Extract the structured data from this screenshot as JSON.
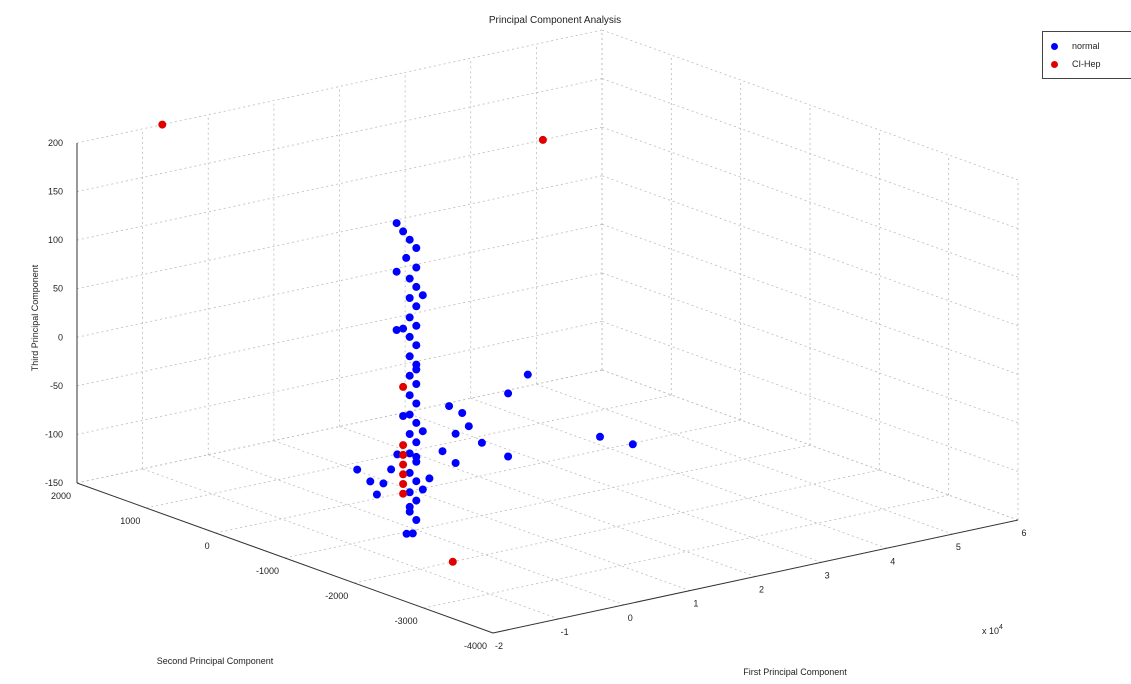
{
  "chart_data": {
    "type": "scatter",
    "title": "Principal Component Analysis",
    "xlabel": "First Principal Component",
    "ylabel": "Second Principal Component",
    "zlabel": "Third Principal Component",
    "x_multiplier_label": "x 10",
    "x_multiplier_exponent": "4",
    "xlim": [
      -2,
      6
    ],
    "ylim": [
      -4000,
      2000
    ],
    "zlim": [
      -150,
      200
    ],
    "xticks": [
      "-2",
      "-1",
      "0",
      "1",
      "2",
      "3",
      "4",
      "5",
      "6"
    ],
    "yticks": [
      "-4000",
      "-3000",
      "-2000",
      "-1000",
      "0",
      "1000",
      "2000"
    ],
    "zticks": [
      "-150",
      "-100",
      "-50",
      "0",
      "50",
      "100",
      "150",
      "200"
    ],
    "grid": true,
    "legend_position": "top-right",
    "series": [
      {
        "name": "normal",
        "color": "#0000ff",
        "points": [
          [
            -0.3,
            -1000,
            170
          ],
          [
            -0.2,
            -1000,
            160
          ],
          [
            -0.1,
            -1000,
            150
          ],
          [
            0.0,
            -1000,
            140
          ],
          [
            -0.1,
            -950,
            130
          ],
          [
            0.0,
            -1000,
            120
          ],
          [
            -0.1,
            -1000,
            110
          ],
          [
            0.0,
            -1000,
            100
          ],
          [
            -0.1,
            -1000,
            90
          ],
          [
            0.0,
            -1000,
            80
          ],
          [
            -0.1,
            -1000,
            70
          ],
          [
            0.0,
            -1000,
            60
          ],
          [
            -0.1,
            -1000,
            50
          ],
          [
            0.0,
            -1000,
            40
          ],
          [
            -0.1,
            -1000,
            30
          ],
          [
            0.0,
            -1000,
            20
          ],
          [
            -0.1,
            -1000,
            10
          ],
          [
            0.0,
            -1000,
            0
          ],
          [
            -0.1,
            -1000,
            -10
          ],
          [
            0.0,
            -1000,
            -20
          ],
          [
            -0.1,
            -1000,
            -30
          ],
          [
            0.0,
            -1000,
            -40
          ],
          [
            -0.1,
            -1000,
            -50
          ],
          [
            0.0,
            -1000,
            -60
          ],
          [
            -0.1,
            -1000,
            -70
          ],
          [
            0.0,
            -1000,
            -80
          ],
          [
            -0.1,
            -1000,
            -90
          ],
          [
            0.0,
            -1000,
            -100
          ],
          [
            -0.1,
            -1000,
            -110
          ],
          [
            0.0,
            -1000,
            -120
          ],
          [
            -0.1,
            -1000,
            -130
          ],
          [
            0.0,
            -1000,
            -140
          ],
          [
            -0.2,
            -1050,
            -150
          ],
          [
            0.0,
            -950,
            -155
          ],
          [
            -0.1,
            -1000,
            -125
          ],
          [
            -0.2,
            -1000,
            60
          ],
          [
            -0.3,
            -1000,
            120
          ],
          [
            -0.3,
            -1000,
            60
          ],
          [
            -0.2,
            -1000,
            -30
          ],
          [
            0.1,
            -1000,
            -110
          ],
          [
            0.2,
            -1000,
            -100
          ],
          [
            0.1,
            -1000,
            -50
          ],
          [
            0.0,
            -1000,
            15
          ],
          [
            0.1,
            -1000,
            90
          ],
          [
            0.5,
            -1000,
            -30
          ],
          [
            0.7,
            -1000,
            -40
          ],
          [
            0.6,
            -1000,
            -60
          ],
          [
            0.8,
            -1000,
            -55
          ],
          [
            0.4,
            -1000,
            -75
          ],
          [
            0.6,
            -1000,
            -90
          ],
          [
            1.0,
            -1000,
            -75
          ],
          [
            1.4,
            -1000,
            -30
          ],
          [
            1.7,
            -1000,
            -15
          ],
          [
            1.4,
            -1000,
            -95
          ],
          [
            2.8,
            -1000,
            -95
          ],
          [
            3.3,
            -1000,
            -110
          ],
          [
            -0.5,
            -1200,
            -60
          ],
          [
            -0.7,
            -1300,
            -70
          ],
          [
            -0.9,
            -1000,
            -75
          ],
          [
            -0.7,
            -1000,
            -90
          ],
          [
            -0.5,
            -1000,
            -95
          ],
          [
            -0.6,
            -1000,
            -105
          ],
          [
            0.0,
            -1000,
            -75
          ]
        ]
      },
      {
        "name": "CI-Hep",
        "color": "#e00000",
        "points": [
          [
            -0.7,
            2000,
            200
          ],
          [
            5.1,
            2000,
            100
          ],
          [
            -0.2,
            -1000,
            0
          ],
          [
            -0.2,
            -1000,
            -60
          ],
          [
            -0.2,
            -1000,
            -70
          ],
          [
            -0.2,
            -1000,
            -80
          ],
          [
            -0.2,
            -1000,
            -90
          ],
          [
            -0.2,
            -1000,
            -100
          ],
          [
            -0.2,
            -1000,
            -110
          ],
          [
            -0.5,
            -2000,
            -150
          ]
        ]
      }
    ]
  }
}
